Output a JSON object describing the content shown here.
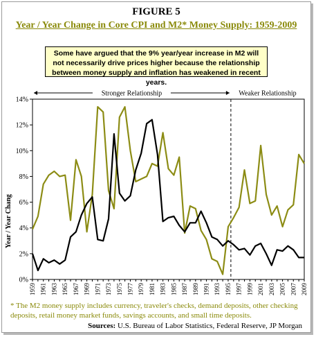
{
  "figure_label": "FIGURE 5",
  "title": "Year / Year Change in Core CPI and M2* Money Supply: 1959-2009",
  "callout": "Some have argued that the 9% year/year increase in M2 will not necessarily drive prices higher because the relationship between money supply and inflation has weakened in recent years.",
  "footnote": "* The M2 money supply includes currency, traveler's checks, demand deposits, other checking deposits, retail money market funds, savings accounts, and small time deposits.",
  "sources_label": "Sources:",
  "sources_text": "U.S. Bureau of Labor Statistics, Federal Reserve, JP Morgan",
  "colors": {
    "m2": "#8c8c14",
    "cpi": "#000000",
    "title": "#8a8a0a",
    "callout_bg": "#ffffc8"
  },
  "chart_data": {
    "type": "line",
    "title": "Year / Year Change in Core CPI and M2* Money Supply: 1959-2009",
    "xlabel": "",
    "ylabel": "Year / Year Chang",
    "ylim": [
      0,
      14
    ],
    "yticks": [
      "0%",
      "2%",
      "4%",
      "6%",
      "8%",
      "10%",
      "12%",
      "14%"
    ],
    "xticks": [
      "1959",
      "1961",
      "1963",
      "1965",
      "1967",
      "1969",
      "1971",
      "1973",
      "1975",
      "1977",
      "1979",
      "1981",
      "1983",
      "1985",
      "1987",
      "1989",
      "1991",
      "1993",
      "1995",
      "1997",
      "1999",
      "2001",
      "2003",
      "2005",
      "2007",
      "2009"
    ],
    "grid": false,
    "annotations": [
      {
        "text": "Stronger Relationship",
        "x_from": 1959,
        "x_to": 1995
      },
      {
        "text": "Weaker Relationship",
        "x_from": 1995,
        "x_to": 2009
      }
    ],
    "divider_x": 1995.5,
    "x": [
      1959,
      1960,
      1961,
      1962,
      1963,
      1964,
      1965,
      1966,
      1967,
      1968,
      1969,
      1970,
      1971,
      1972,
      1973,
      1974,
      1975,
      1976,
      1977,
      1978,
      1979,
      1980,
      1981,
      1982,
      1983,
      1984,
      1985,
      1986,
      1987,
      1988,
      1989,
      1990,
      1991,
      1992,
      1993,
      1994,
      1995,
      1996,
      1997,
      1998,
      1999,
      2000,
      2001,
      2002,
      2003,
      2004,
      2005,
      2006,
      2007,
      2008,
      2009
    ],
    "series": [
      {
        "name": "M2",
        "values": [
          3.9,
          4.9,
          7.4,
          8.1,
          8.4,
          8.0,
          8.1,
          4.6,
          9.3,
          8.0,
          3.7,
          6.6,
          13.4,
          13.0,
          6.9,
          5.5,
          12.6,
          13.4,
          10.0,
          7.6,
          7.8,
          8.0,
          9.0,
          8.8,
          11.4,
          8.6,
          8.1,
          9.5,
          3.6,
          5.7,
          5.5,
          3.8,
          3.1,
          1.6,
          1.4,
          0.4,
          4.1,
          4.8,
          5.6,
          8.5,
          5.9,
          6.1,
          10.4,
          6.6,
          5.0,
          5.7,
          4.1,
          5.4,
          5.8,
          9.7,
          9.0
        ]
      },
      {
        "name": "Core CPI",
        "values": [
          2.0,
          0.7,
          1.6,
          1.3,
          1.5,
          1.2,
          1.5,
          3.3,
          3.7,
          5.0,
          5.9,
          6.4,
          3.1,
          3.0,
          4.7,
          11.3,
          6.7,
          6.1,
          6.5,
          8.5,
          9.8,
          12.1,
          12.4,
          9.7,
          4.5,
          4.8,
          4.9,
          4.2,
          3.7,
          4.4,
          4.4,
          5.3,
          4.4,
          3.3,
          3.1,
          2.6,
          3.0,
          2.7,
          2.3,
          2.4,
          1.9,
          2.6,
          2.8,
          2.0,
          1.1,
          2.3,
          2.2,
          2.6,
          2.3,
          1.7,
          1.7
        ]
      }
    ]
  }
}
